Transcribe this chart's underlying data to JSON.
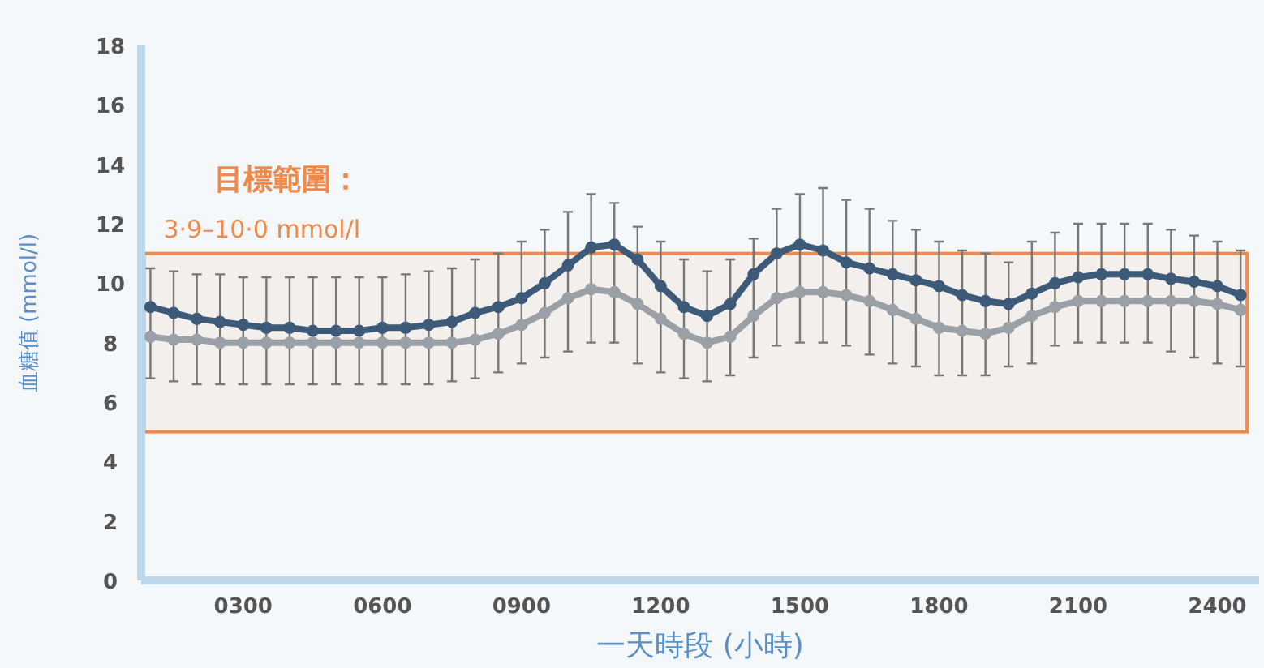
{
  "chart_data": {
    "type": "line",
    "xlabel": "一天時段 (小時)",
    "ylabel": "血糖值 (mmol/l)",
    "annotations": [
      "目標範圍："
    ],
    "x": [
      100,
      150,
      200,
      250,
      300,
      350,
      400,
      450,
      500,
      550,
      600,
      650,
      700,
      750,
      800,
      850,
      900,
      950,
      1000,
      1050,
      1100,
      1150,
      1200,
      1250,
      1300,
      1350,
      1400,
      1450,
      1500,
      1550,
      1600,
      1650,
      1700,
      1750,
      1800,
      1850,
      1900,
      1950,
      2000,
      2050,
      2100,
      2150,
      2200,
      2250,
      2300,
      2350,
      2400,
      2450
    ],
    "series": [
      {
        "color": "#3d5a78",
        "values": [
          9.2,
          9.0,
          8.8,
          8.7,
          8.6,
          8.5,
          8.5,
          8.4,
          8.4,
          8.4,
          8.5,
          8.5,
          8.6,
          8.7,
          9.0,
          9.2,
          9.5,
          10.0,
          10.6,
          11.2,
          11.3,
          10.8,
          9.9,
          9.2,
          8.9,
          9.3,
          10.3,
          11.0,
          11.3,
          11.1,
          10.7,
          10.5,
          10.3,
          10.1,
          9.9,
          9.6,
          9.4,
          9.3,
          9.65,
          10.0,
          10.2,
          10.3,
          10.3,
          10.3,
          10.15,
          10.05,
          9.9,
          9.6
        ],
        "errors": [
          [
            6.8,
            10.5
          ],
          [
            6.7,
            10.4
          ],
          [
            6.6,
            10.3
          ],
          [
            6.6,
            10.3
          ],
          [
            6.6,
            10.2
          ],
          [
            6.6,
            10.2
          ],
          [
            6.6,
            10.2
          ],
          [
            6.6,
            10.2
          ],
          [
            6.6,
            10.2
          ],
          [
            6.6,
            10.2
          ],
          [
            6.6,
            10.2
          ],
          [
            6.6,
            10.3
          ],
          [
            6.6,
            10.4
          ],
          [
            6.7,
            10.5
          ],
          [
            6.8,
            10.8
          ],
          [
            7.0,
            11.0
          ],
          [
            7.3,
            11.4
          ],
          [
            7.5,
            11.8
          ],
          [
            7.7,
            12.4
          ],
          [
            8.0,
            13.0
          ],
          [
            8.0,
            12.7
          ],
          [
            7.3,
            11.9
          ],
          [
            7.0,
            11.4
          ],
          [
            6.8,
            10.8
          ],
          [
            6.7,
            10.4
          ],
          [
            6.9,
            10.8
          ],
          [
            7.5,
            11.5
          ],
          [
            7.9,
            12.5
          ],
          [
            8.0,
            13.0
          ],
          [
            8.0,
            13.2
          ],
          [
            7.9,
            12.8
          ],
          [
            7.6,
            12.5
          ],
          [
            7.3,
            12.1
          ],
          [
            7.2,
            11.8
          ],
          [
            6.9,
            11.4
          ],
          [
            6.9,
            11.1
          ],
          [
            6.9,
            11.0
          ],
          [
            7.2,
            10.7
          ],
          [
            7.3,
            11.4
          ],
          [
            7.9,
            11.7
          ],
          [
            8.0,
            12.0
          ],
          [
            8.0,
            12.0
          ],
          [
            8.0,
            12.0
          ],
          [
            8.0,
            12.0
          ],
          [
            7.7,
            11.8
          ],
          [
            7.5,
            11.6
          ],
          [
            7.3,
            11.4
          ],
          [
            7.2,
            11.1
          ]
        ]
      },
      {
        "color": "#9aa0a6",
        "values": [
          8.2,
          8.1,
          8.1,
          8.0,
          8.0,
          8.0,
          8.0,
          8.0,
          8.0,
          8.0,
          8.0,
          8.0,
          8.0,
          8.0,
          8.1,
          8.3,
          8.6,
          9.0,
          9.5,
          9.8,
          9.7,
          9.3,
          8.8,
          8.3,
          8.0,
          8.2,
          8.9,
          9.5,
          9.7,
          9.7,
          9.6,
          9.4,
          9.1,
          8.8,
          8.5,
          8.4,
          8.3,
          8.5,
          8.9,
          9.2,
          9.4,
          9.4,
          9.4,
          9.4,
          9.4,
          9.4,
          9.3,
          9.1
        ]
      }
    ],
    "bands": [
      {
        "axis": "y",
        "from": 5,
        "to": 11,
        "label": "3·9–10·0 mmol/l",
        "color": "#f08a4b"
      }
    ],
    "xlim": [
      80,
      2490
    ],
    "ylim": [
      0,
      18
    ],
    "xticks": [
      {
        "value": 300,
        "label": "0300"
      },
      {
        "value": 600,
        "label": "0600"
      },
      {
        "value": 900,
        "label": "0900"
      },
      {
        "value": 1200,
        "label": "1200"
      },
      {
        "value": 1500,
        "label": "1500"
      },
      {
        "value": 1800,
        "label": "1800"
      },
      {
        "value": 2100,
        "label": "2100"
      },
      {
        "value": 2400,
        "label": "2400"
      }
    ],
    "yticks": [
      0,
      2,
      4,
      6,
      8,
      10,
      12,
      14,
      16,
      18
    ],
    "marker": "circle",
    "line_style": "solid"
  }
}
